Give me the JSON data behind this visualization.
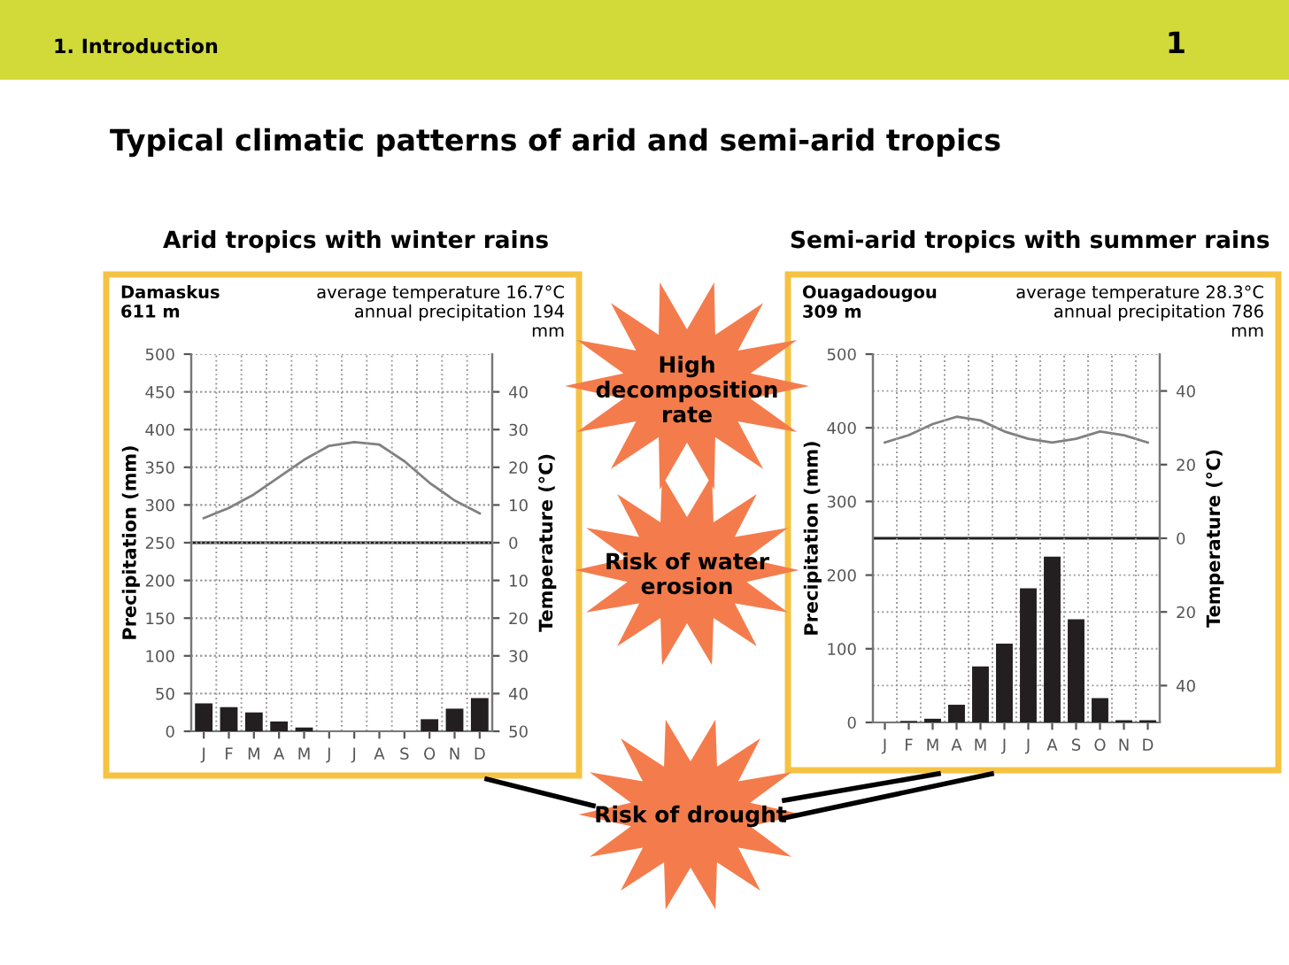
{
  "chart_data": [
    {
      "type": "other",
      "annotations": [
        "1. Introduction",
        "1",
        "Typical climatic patterns of arid and semi-arid tropics",
        "High decomposition rate",
        "Risk of water erosion",
        "Risk of drought"
      ]
    },
    {
      "type": "bar",
      "title": "Arid tropics with winter rains",
      "ylabel": "Precipitation (mm)",
      "y2label": "Temperature (°C)",
      "annotations": [
        "Damaskus\n611 m",
        "average temperature 16.7°C\nannual precipitation 194\nmm"
      ],
      "categories": [
        "J",
        "F",
        "M",
        "A",
        "M",
        "J",
        "J",
        "A",
        "S",
        "O",
        "N",
        "D"
      ],
      "series": [
        {
          "type": "bar",
          "color": "#231f20",
          "values": [
            37,
            32,
            25,
            13,
            5,
            0,
            0,
            0,
            0,
            16,
            30,
            44
          ]
        },
        {
          "type": "line",
          "axis": "y2",
          "color": "#808080",
          "values": [
            6.5,
            9.2,
            12.8,
            17.4,
            22,
            25.7,
            26.7,
            26,
            21.6,
            15.9,
            11.2,
            7.8
          ]
        }
      ],
      "ylim": [
        0,
        500
      ],
      "yticks": [
        0,
        50,
        100,
        150,
        200,
        250,
        300,
        350,
        400,
        450,
        500
      ],
      "y2lim": [
        -50,
        50
      ],
      "y2ticks": [
        {
          "value": -50,
          "label": "50"
        },
        {
          "value": -40,
          "label": "40"
        },
        {
          "value": -30,
          "label": "30"
        },
        {
          "value": -20,
          "label": "20"
        },
        {
          "value": -10,
          "label": "10"
        },
        0,
        10,
        20,
        30,
        40
      ],
      "ref_lines": [
        {
          "axis": "y2",
          "value": 0,
          "color": "#231f20"
        }
      ],
      "grid": true,
      "legend": false,
      "marker": "none",
      "line_style": "solid"
    },
    {
      "type": "bar",
      "title": "Semi-arid tropics with summer rains",
      "ylabel": "Precipitation (mm)",
      "y2label": "Temperature (°C)",
      "annotations": [
        "Ouagadougou\n309 m",
        "average temperature 28.3°C\nannual precipitation 786\nmm"
      ],
      "categories": [
        "J",
        "F",
        "M",
        "A",
        "M",
        "J",
        "J",
        "A",
        "S",
        "O",
        "N",
        "D"
      ],
      "series": [
        {
          "type": "bar",
          "color": "#231f20",
          "values": [
            0,
            2,
            5,
            24,
            76,
            107,
            182,
            225,
            140,
            33,
            3,
            3
          ]
        },
        {
          "type": "line",
          "axis": "y2",
          "color": "#808080",
          "values": [
            26,
            28,
            31,
            33,
            32,
            29,
            27,
            26,
            27,
            29,
            28,
            26
          ]
        }
      ],
      "ylim": [
        0,
        500
      ],
      "yticks": [
        0,
        100,
        200,
        300,
        400,
        500
      ],
      "y2lim": [
        -50,
        50
      ],
      "y2ticks": [
        {
          "value": -40,
          "label": "40"
        },
        {
          "value": -20,
          "label": "20"
        },
        0,
        20,
        40
      ],
      "ref_lines": [
        {
          "axis": "y2",
          "value": 0,
          "color": "#231f20"
        }
      ],
      "grid": true,
      "legend": false,
      "marker": "none",
      "line_style": "solid"
    }
  ]
}
